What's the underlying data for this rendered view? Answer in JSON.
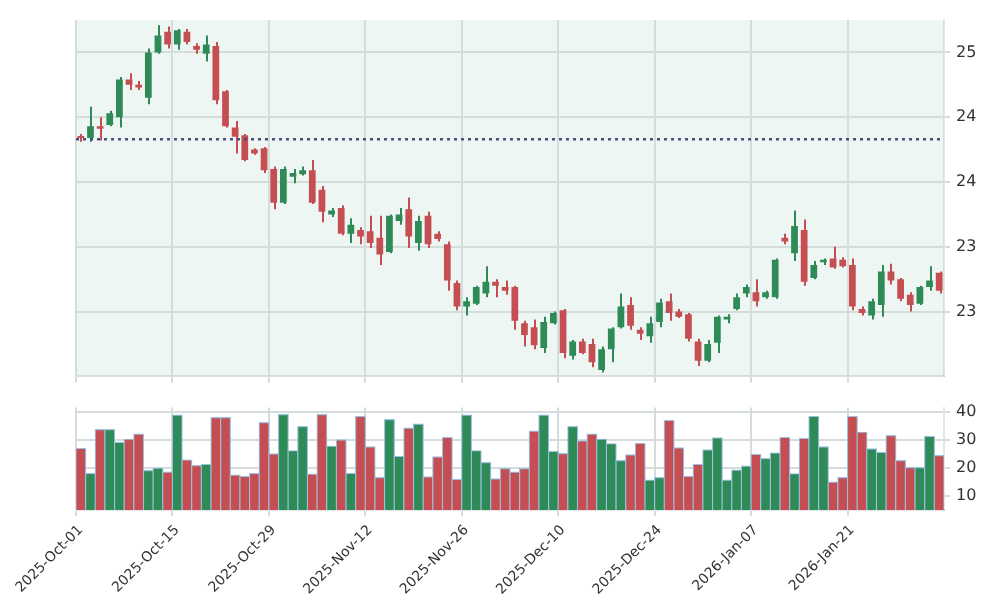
{
  "chart_data": [
    {
      "type": "candlestick",
      "categories": [
        null,
        null,
        null,
        null,
        null,
        null,
        null,
        null,
        null,
        null,
        null,
        null,
        null,
        null,
        null,
        null,
        null,
        null,
        null,
        null,
        null,
        null,
        null,
        null,
        null,
        null,
        null,
        null,
        null,
        null,
        null,
        null,
        null,
        null,
        null,
        null,
        null,
        null,
        null,
        null,
        null,
        null,
        null,
        null,
        null,
        null,
        null,
        null,
        null,
        null,
        null,
        null,
        null,
        null,
        null,
        null,
        null,
        null,
        null,
        null,
        null,
        null,
        null,
        null,
        null,
        null,
        null,
        null,
        null,
        null,
        null,
        null,
        null,
        null,
        null,
        null,
        null,
        null,
        null,
        null,
        null,
        null,
        null,
        null,
        null,
        null,
        null,
        null,
        null,
        null
      ],
      "ohlc": [
        [
          24.35,
          24.37,
          24.31,
          24.34
        ],
        [
          24.34,
          24.58,
          24.31,
          24.43
        ],
        [
          24.43,
          24.5,
          24.32,
          24.41
        ],
        [
          24.44,
          24.55,
          24.43,
          24.53
        ],
        [
          24.5,
          24.81,
          24.42,
          24.79
        ],
        [
          24.79,
          24.84,
          24.71,
          24.75
        ],
        [
          24.75,
          24.78,
          24.71,
          24.73
        ],
        [
          24.65,
          25.03,
          24.6,
          25.0
        ],
        [
          25.0,
          25.21,
          24.99,
          25.13
        ],
        [
          25.16,
          25.2,
          25.03,
          25.06
        ],
        [
          25.06,
          25.18,
          25.02,
          25.17
        ],
        [
          25.16,
          25.18,
          25.06,
          25.08
        ],
        [
          25.05,
          25.07,
          24.99,
          25.02
        ],
        [
          24.99,
          25.13,
          24.93,
          25.06
        ],
        [
          25.05,
          25.08,
          24.6,
          24.63
        ],
        [
          24.7,
          24.71,
          24.42,
          24.43
        ],
        [
          24.42,
          24.47,
          24.22,
          24.35
        ],
        [
          24.36,
          24.37,
          24.16,
          24.17
        ],
        [
          24.25,
          24.26,
          24.21,
          24.22
        ],
        [
          24.26,
          24.27,
          24.07,
          24.09
        ],
        [
          24.1,
          24.12,
          23.79,
          23.84
        ],
        [
          23.84,
          24.12,
          23.83,
          24.1
        ],
        [
          24.04,
          24.1,
          23.99,
          24.07
        ],
        [
          24.06,
          24.12,
          24.05,
          24.09
        ],
        [
          24.09,
          24.17,
          23.83,
          23.84
        ],
        [
          23.94,
          23.97,
          23.69,
          23.77
        ],
        [
          23.75,
          23.8,
          23.73,
          23.78
        ],
        [
          23.8,
          23.82,
          23.59,
          23.6
        ],
        [
          23.6,
          23.72,
          23.53,
          23.67
        ],
        [
          23.63,
          23.65,
          23.52,
          23.58
        ],
        [
          23.62,
          23.74,
          23.49,
          23.53
        ],
        [
          23.57,
          23.74,
          23.36,
          23.44
        ],
        [
          23.46,
          23.75,
          23.45,
          23.74
        ],
        [
          23.7,
          23.8,
          23.67,
          23.75
        ],
        [
          23.79,
          23.88,
          23.49,
          23.58
        ],
        [
          23.53,
          23.74,
          23.47,
          23.7
        ],
        [
          23.74,
          23.77,
          23.49,
          23.52
        ],
        [
          23.6,
          23.62,
          23.54,
          23.56
        ],
        [
          23.52,
          23.54,
          23.16,
          23.24
        ],
        [
          23.22,
          23.24,
          23.01,
          23.04
        ],
        [
          23.04,
          23.11,
          22.97,
          23.08
        ],
        [
          23.06,
          23.2,
          23.05,
          23.19
        ],
        [
          23.14,
          23.35,
          23.11,
          23.23
        ],
        [
          23.23,
          23.25,
          23.11,
          23.2
        ],
        [
          23.19,
          23.24,
          23.13,
          23.16
        ],
        [
          23.19,
          23.2,
          22.86,
          22.93
        ],
        [
          22.91,
          22.93,
          22.73,
          22.82
        ],
        [
          22.88,
          22.94,
          22.71,
          22.74
        ],
        [
          22.72,
          22.96,
          22.68,
          22.92
        ],
        [
          22.91,
          23.0,
          22.9,
          22.99
        ],
        [
          23.01,
          23.02,
          22.64,
          22.68
        ],
        [
          22.66,
          22.78,
          22.63,
          22.77
        ],
        [
          22.77,
          22.79,
          22.67,
          22.68
        ],
        [
          22.75,
          22.79,
          22.57,
          22.61
        ],
        [
          22.55,
          22.73,
          22.53,
          22.71
        ],
        [
          22.71,
          22.88,
          22.61,
          22.87
        ],
        [
          22.88,
          23.14,
          22.87,
          23.04
        ],
        [
          23.05,
          23.11,
          22.86,
          22.89
        ],
        [
          22.86,
          22.88,
          22.78,
          22.83
        ],
        [
          22.81,
          22.96,
          22.76,
          22.91
        ],
        [
          22.92,
          23.1,
          22.88,
          23.07
        ],
        [
          23.08,
          23.14,
          22.93,
          22.99
        ],
        [
          23.0,
          23.02,
          22.95,
          22.96
        ],
        [
          22.98,
          22.99,
          22.77,
          22.79
        ],
        [
          22.77,
          22.79,
          22.58,
          22.62
        ],
        [
          22.62,
          22.78,
          22.61,
          22.75
        ],
        [
          22.76,
          22.97,
          22.68,
          22.96
        ],
        [
          22.94,
          22.98,
          22.91,
          22.96
        ],
        [
          23.02,
          23.14,
          23.01,
          23.11
        ],
        [
          23.14,
          23.21,
          23.11,
          23.19
        ],
        [
          23.15,
          23.25,
          23.04,
          23.08
        ],
        [
          23.11,
          23.16,
          23.1,
          23.15
        ],
        [
          23.11,
          23.41,
          23.1,
          23.4
        ],
        [
          23.57,
          23.6,
          23.52,
          23.54
        ],
        [
          23.45,
          23.78,
          23.39,
          23.66
        ],
        [
          23.63,
          23.71,
          23.2,
          23.23
        ],
        [
          23.26,
          23.39,
          23.25,
          23.36
        ],
        [
          23.38,
          23.41,
          23.36,
          23.4
        ],
        [
          23.41,
          23.5,
          23.33,
          23.34
        ],
        [
          23.4,
          23.42,
          23.34,
          23.35
        ],
        [
          23.36,
          23.41,
          23.01,
          23.04
        ],
        [
          23.02,
          23.04,
          22.97,
          22.99
        ],
        [
          22.97,
          23.1,
          22.94,
          23.08
        ],
        [
          23.05,
          23.36,
          22.96,
          23.31
        ],
        [
          23.31,
          23.37,
          23.21,
          23.24
        ],
        [
          23.25,
          23.26,
          23.08,
          23.1
        ],
        [
          23.13,
          23.15,
          23.0,
          23.05
        ],
        [
          23.06,
          23.2,
          23.05,
          23.19
        ],
        [
          23.19,
          23.35,
          23.16,
          23.24
        ],
        [
          23.3,
          23.31,
          23.14,
          23.16
        ]
      ],
      "colors": [
        "#c44e52",
        "#2e8b57",
        "#c44e52",
        "#2e8b57",
        "#2e8b57",
        "#c44e52",
        "#c44e52",
        "#2e8b57",
        "#2e8b57",
        "#c44e52",
        "#2e8b57",
        "#c44e52",
        "#c44e52",
        "#2e8b57",
        "#c44e52",
        "#c44e52",
        "#c44e52",
        "#c44e52",
        "#c44e52",
        "#c44e52",
        "#c44e52",
        "#2e8b57",
        "#2e8b57",
        "#2e8b57",
        "#c44e52",
        "#c44e52",
        "#2e8b57",
        "#c44e52",
        "#2e8b57",
        "#c44e52",
        "#c44e52",
        "#c44e52",
        "#2e8b57",
        "#2e8b57",
        "#c44e52",
        "#2e8b57",
        "#c44e52",
        "#c44e52",
        "#c44e52",
        "#c44e52",
        "#2e8b57",
        "#2e8b57",
        "#2e8b57",
        "#c44e52",
        "#c44e52",
        "#c44e52",
        "#c44e52",
        "#c44e52",
        "#2e8b57",
        "#2e8b57",
        "#c44e52",
        "#2e8b57",
        "#c44e52",
        "#c44e52",
        "#2e8b57",
        "#2e8b57",
        "#2e8b57",
        "#c44e52",
        "#c44e52",
        "#2e8b57",
        "#2e8b57",
        "#c44e52",
        "#c44e52",
        "#c44e52",
        "#c44e52",
        "#2e8b57",
        "#2e8b57",
        "#2e8b57",
        "#2e8b57",
        "#2e8b57",
        "#c44e52",
        "#2e8b57",
        "#2e8b57",
        "#c44e52",
        "#2e8b57",
        "#c44e52",
        "#2e8b57",
        "#2e8b57",
        "#c44e52",
        "#c44e52",
        "#c44e52",
        "#c44e52",
        "#2e8b57",
        "#2e8b57",
        "#c44e52",
        "#c44e52",
        "#c44e52",
        "#2e8b57",
        "#2e8b57",
        "#c44e52"
      ],
      "ylim": [
        22.5,
        25.25
      ],
      "yticks": [
        {
          "value": 25,
          "label": "25"
        },
        {
          "value": 24.5,
          "label": "24"
        },
        {
          "value": 24,
          "label": "24"
        },
        {
          "value": 23.5,
          "label": "23"
        },
        {
          "value": 23,
          "label": "23"
        }
      ],
      "ref_lines": [
        {
          "axis": "y",
          "value": 24.33,
          "color": "#4a4f7a",
          "line_style": "dotted"
        }
      ],
      "tick_labels": "y",
      "grid": true
    },
    {
      "type": "bar",
      "categories": [
        "2025-Oct-01",
        null,
        null,
        null,
        null,
        null,
        null,
        null,
        null,
        null,
        "2025-Oct-15",
        null,
        null,
        null,
        null,
        null,
        null,
        null,
        null,
        null,
        "2025-Oct-29",
        null,
        null,
        null,
        null,
        null,
        null,
        null,
        null,
        null,
        "2025-Nov-12",
        null,
        null,
        null,
        null,
        null,
        null,
        null,
        null,
        null,
        "2025-Nov-26",
        null,
        null,
        null,
        null,
        null,
        null,
        null,
        null,
        null,
        "2025-Dec-10",
        null,
        null,
        null,
        null,
        null,
        null,
        null,
        null,
        null,
        "2025-Dec-24",
        null,
        null,
        null,
        null,
        null,
        null,
        null,
        null,
        null,
        "2026-Jan-07",
        null,
        null,
        null,
        null,
        null,
        null,
        null,
        null,
        null,
        "2026-Jan-21",
        null,
        null,
        null,
        null,
        null,
        null,
        null,
        null,
        null
      ],
      "values": [
        26.9,
        18.0,
        33.6,
        33.6,
        29.1,
        30.2,
        32.0,
        19.0,
        19.9,
        18.5,
        38.8,
        22.8,
        20.8,
        21.2,
        37.9,
        37.9,
        17.4,
        17.0,
        18.0,
        36.1,
        25.0,
        39.0,
        26.1,
        34.7,
        17.8,
        39.0,
        27.7,
        30.0,
        18.0,
        38.3,
        27.5,
        16.5,
        37.2,
        24.1,
        34.2,
        35.6,
        16.8,
        23.9,
        30.9,
        15.9,
        38.8,
        26.1,
        21.9,
        16.1,
        19.7,
        18.5,
        19.7,
        33.1,
        38.8,
        25.9,
        25.1,
        34.7,
        29.6,
        32.0,
        30.2,
        28.6,
        22.6,
        24.6,
        28.7,
        15.6,
        16.5,
        36.9,
        27.1,
        17.0,
        21.2,
        26.4,
        30.7,
        15.6,
        19.2,
        20.6,
        24.8,
        23.3,
        25.3,
        30.9,
        17.9,
        30.5,
        38.3,
        27.5,
        14.9,
        16.5,
        38.3,
        32.7,
        26.8,
        25.5,
        31.5,
        22.6,
        20.1,
        20.1,
        31.2,
        24.4
      ],
      "colors": [
        "#c44e52",
        "#2e8b57",
        "#c44e52",
        "#2e8b57",
        "#2e8b57",
        "#c44e52",
        "#c44e52",
        "#2e8b57",
        "#2e8b57",
        "#c44e52",
        "#2e8b57",
        "#c44e52",
        "#c44e52",
        "#2e8b57",
        "#c44e52",
        "#c44e52",
        "#c44e52",
        "#c44e52",
        "#c44e52",
        "#c44e52",
        "#c44e52",
        "#2e8b57",
        "#2e8b57",
        "#2e8b57",
        "#c44e52",
        "#c44e52",
        "#2e8b57",
        "#c44e52",
        "#2e8b57",
        "#c44e52",
        "#c44e52",
        "#c44e52",
        "#2e8b57",
        "#2e8b57",
        "#c44e52",
        "#2e8b57",
        "#c44e52",
        "#c44e52",
        "#c44e52",
        "#c44e52",
        "#2e8b57",
        "#2e8b57",
        "#2e8b57",
        "#c44e52",
        "#c44e52",
        "#c44e52",
        "#c44e52",
        "#c44e52",
        "#2e8b57",
        "#2e8b57",
        "#c44e52",
        "#2e8b57",
        "#c44e52",
        "#c44e52",
        "#2e8b57",
        "#2e8b57",
        "#2e8b57",
        "#c44e52",
        "#c44e52",
        "#2e8b57",
        "#2e8b57",
        "#c44e52",
        "#c44e52",
        "#c44e52",
        "#c44e52",
        "#2e8b57",
        "#2e8b57",
        "#2e8b57",
        "#2e8b57",
        "#2e8b57",
        "#c44e52",
        "#2e8b57",
        "#2e8b57",
        "#c44e52",
        "#2e8b57",
        "#c44e52",
        "#2e8b57",
        "#2e8b57",
        "#c44e52",
        "#c44e52",
        "#c44e52",
        "#c44e52",
        "#2e8b57",
        "#2e8b57",
        "#c44e52",
        "#c44e52",
        "#c44e52",
        "#2e8b57",
        "#2e8b57",
        "#c44e52"
      ],
      "ylim": [
        5,
        41.5
      ],
      "yticks": [
        40,
        30,
        20,
        10
      ],
      "grid": true
    }
  ]
}
